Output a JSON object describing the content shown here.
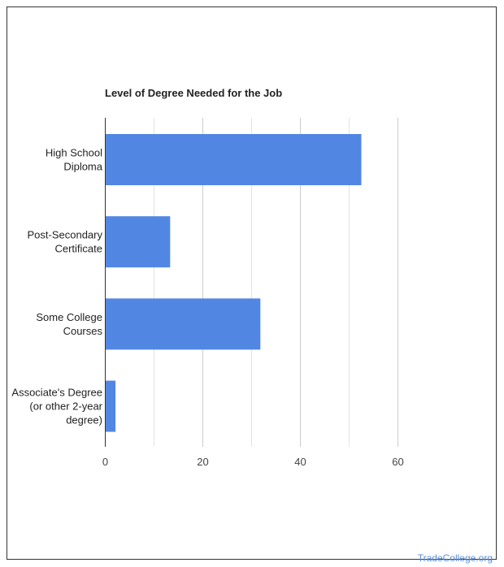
{
  "chart_data": {
    "type": "bar",
    "orientation": "horizontal",
    "title": "Level of Degree Needed for the Job",
    "categories": [
      [
        "High School",
        "Diploma"
      ],
      [
        "Post-Secondary",
        "Certificate"
      ],
      [
        "Some College",
        "Courses"
      ],
      [
        "Associate's Degree",
        "(or other 2-year",
        "degree)"
      ]
    ],
    "values": [
      52.5,
      13.3,
      31.8,
      2.1
    ],
    "xlim": [
      0,
      60
    ],
    "xticks": [
      "0",
      "20",
      "40",
      "60"
    ],
    "grid": true,
    "bar_color": "#5286e3"
  },
  "watermark": "TradeCollege.org"
}
